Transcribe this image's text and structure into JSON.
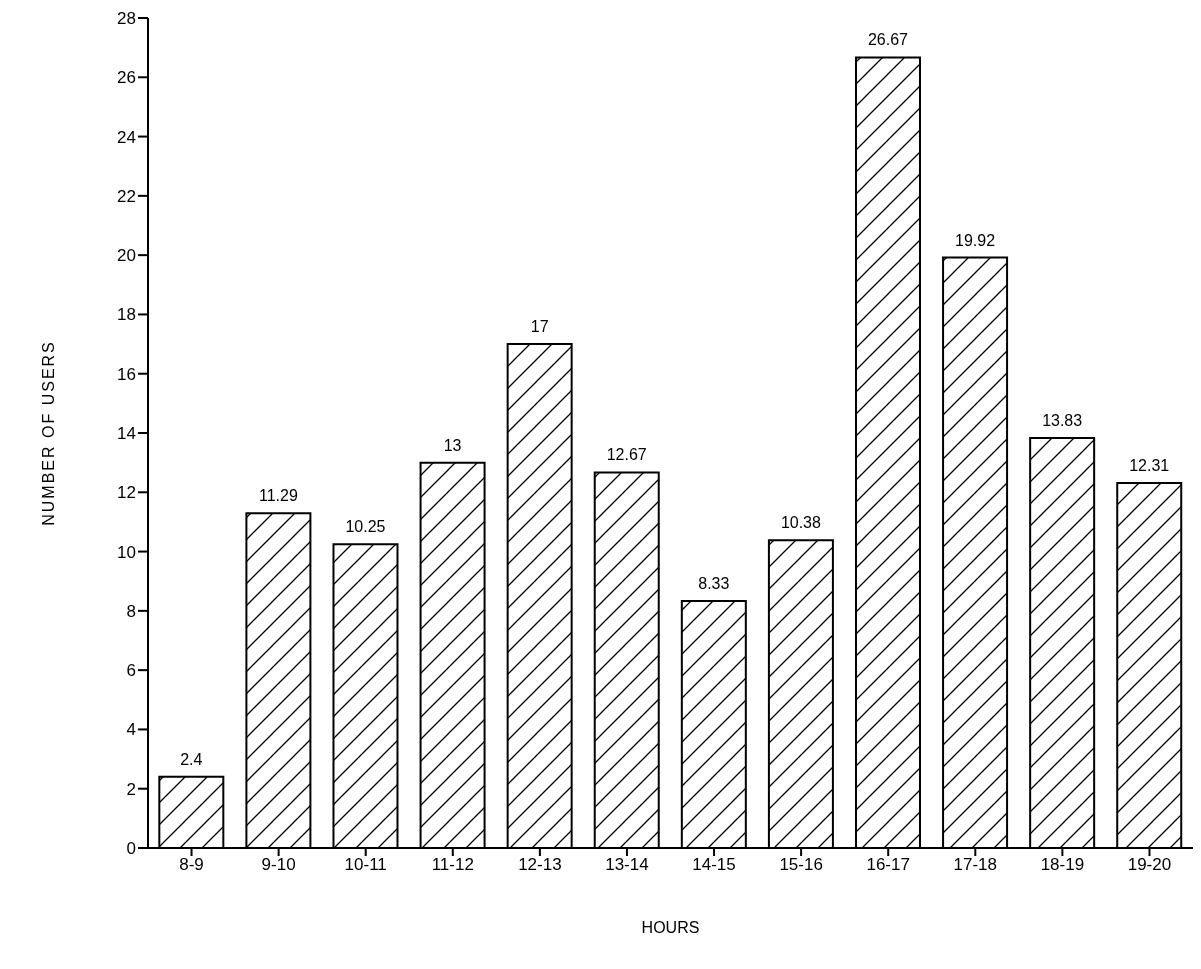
{
  "chart_data": {
    "type": "bar",
    "xlabel": "HOURS",
    "ylabel": "NUMBER OF USERS",
    "categories": [
      "8-9",
      "9-10",
      "10-11",
      "11-12",
      "12-13",
      "13-14",
      "14-15",
      "15-16",
      "16-17",
      "17-18",
      "18-19",
      "19-20"
    ],
    "values": [
      2.4,
      11.29,
      10.25,
      13,
      17,
      12.67,
      8.33,
      10.38,
      26.67,
      19.92,
      13.83,
      12.31
    ],
    "color": "#000000",
    "ylim": [
      0,
      28
    ],
    "yticks": [
      0,
      2,
      4,
      6,
      8,
      10,
      12,
      14,
      16,
      18,
      20,
      22,
      24,
      26,
      28
    ],
    "data_labels": true,
    "grid": false,
    "legend": false
  }
}
